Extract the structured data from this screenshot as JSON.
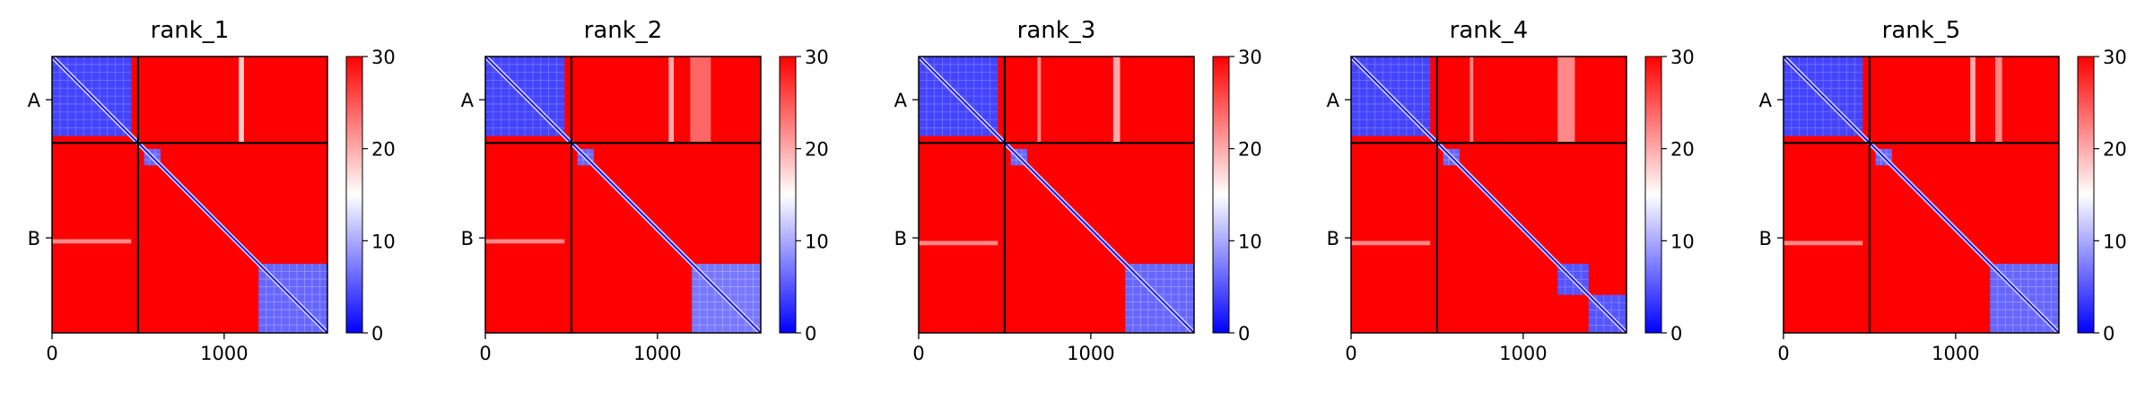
{
  "chart_data": {
    "type": "heatmap",
    "colormap": {
      "name": "bwr",
      "low_color": "#0000ff",
      "mid_color": "#ffffff",
      "high_color": "#ff0000",
      "vmin": 0,
      "vmax": 30,
      "ticks": [
        "0",
        "10",
        "20",
        "30"
      ]
    },
    "shared": {
      "x_ticks": [
        0,
        1000
      ],
      "x_tick_labels": [
        "0",
        "1000"
      ],
      "y_tick_labels": [
        "A",
        "B"
      ],
      "chain_boundary": 500,
      "matrix_size": 1600,
      "grid": false
    },
    "panels": [
      {
        "title": "rank_1",
        "chains": [
          {
            "label": "A",
            "start": 0,
            "end": 500
          },
          {
            "label": "B",
            "start": 500,
            "end": 1600
          }
        ],
        "blocks": [
          {
            "from": 0,
            "to": 460,
            "level": 4
          },
          {
            "from": 535,
            "to": 630,
            "level": 6
          },
          {
            "from": 1200,
            "to": 1600,
            "level": 6
          }
        ],
        "stripes": [
          {
            "axis": "col",
            "pos": 1100,
            "width": 30,
            "level": 18,
            "span": [
              0,
              500
            ]
          },
          {
            "axis": "row",
            "pos": 1070,
            "width": 25,
            "level": 22,
            "span": [
              0,
              460
            ]
          }
        ]
      },
      {
        "title": "rank_2",
        "chains": [
          {
            "label": "A",
            "start": 0,
            "end": 500
          },
          {
            "label": "B",
            "start": 500,
            "end": 1600
          }
        ],
        "blocks": [
          {
            "from": 0,
            "to": 460,
            "level": 4
          },
          {
            "from": 535,
            "to": 630,
            "level": 6
          },
          {
            "from": 1200,
            "to": 1600,
            "level": 7
          }
        ],
        "stripes": [
          {
            "axis": "col",
            "pos": 1080,
            "width": 30,
            "level": 20,
            "span": [
              0,
              500
            ]
          },
          {
            "axis": "col",
            "pos": 1250,
            "width": 120,
            "level": 24,
            "span": [
              0,
              500
            ]
          },
          {
            "axis": "row",
            "pos": 1070,
            "width": 25,
            "level": 22,
            "span": [
              0,
              460
            ]
          }
        ]
      },
      {
        "title": "rank_3",
        "chains": [
          {
            "label": "A",
            "start": 0,
            "end": 500
          },
          {
            "label": "B",
            "start": 500,
            "end": 1600
          }
        ],
        "blocks": [
          {
            "from": 0,
            "to": 460,
            "level": 4
          },
          {
            "from": 535,
            "to": 630,
            "level": 6
          },
          {
            "from": 1200,
            "to": 1600,
            "level": 6
          }
        ],
        "stripes": [
          {
            "axis": "col",
            "pos": 700,
            "width": 20,
            "level": 22,
            "span": [
              0,
              500
            ]
          },
          {
            "axis": "col",
            "pos": 1150,
            "width": 40,
            "level": 20,
            "span": [
              0,
              500
            ]
          },
          {
            "axis": "row",
            "pos": 1080,
            "width": 25,
            "level": 22,
            "span": [
              0,
              460
            ]
          }
        ]
      },
      {
        "title": "rank_4",
        "chains": [
          {
            "label": "A",
            "start": 0,
            "end": 500
          },
          {
            "label": "B",
            "start": 500,
            "end": 1600
          }
        ],
        "blocks": [
          {
            "from": 0,
            "to": 460,
            "level": 4
          },
          {
            "from": 535,
            "to": 630,
            "level": 6
          },
          {
            "from": 1200,
            "to": 1380,
            "level": 5
          },
          {
            "from": 1380,
            "to": 1600,
            "level": 5
          }
        ],
        "stripes": [
          {
            "axis": "col",
            "pos": 700,
            "width": 20,
            "level": 22,
            "span": [
              0,
              500
            ]
          },
          {
            "axis": "col",
            "pos": 1250,
            "width": 100,
            "level": 22,
            "span": [
              0,
              500
            ]
          },
          {
            "axis": "row",
            "pos": 1080,
            "width": 25,
            "level": 22,
            "span": [
              0,
              460
            ]
          }
        ]
      },
      {
        "title": "rank_5",
        "chains": [
          {
            "label": "A",
            "start": 0,
            "end": 500
          },
          {
            "label": "B",
            "start": 500,
            "end": 1600
          }
        ],
        "blocks": [
          {
            "from": 0,
            "to": 460,
            "level": 4
          },
          {
            "from": 535,
            "to": 630,
            "level": 6
          },
          {
            "from": 1200,
            "to": 1600,
            "level": 6
          }
        ],
        "stripes": [
          {
            "axis": "col",
            "pos": 1100,
            "width": 30,
            "level": 20,
            "span": [
              0,
              500
            ]
          },
          {
            "axis": "col",
            "pos": 1250,
            "width": 40,
            "level": 22,
            "span": [
              0,
              500
            ]
          },
          {
            "axis": "row",
            "pos": 1080,
            "width": 25,
            "level": 22,
            "span": [
              0,
              460
            ]
          }
        ]
      }
    ]
  }
}
